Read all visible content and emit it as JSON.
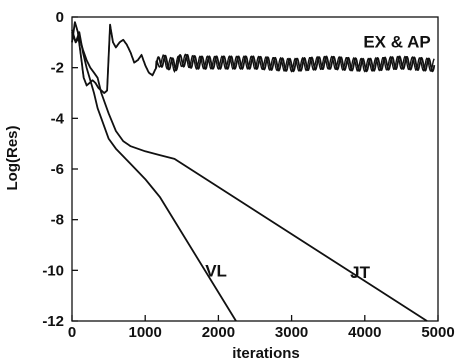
{
  "chart_data": {
    "type": "line",
    "title": "",
    "xlabel": "iterations",
    "ylabel": "Log(Res)",
    "xlim": [
      0,
      5000
    ],
    "ylim": [
      -12,
      0
    ],
    "xticks": [
      0,
      1000,
      2000,
      3000,
      4000,
      5000
    ],
    "xtick_labels": [
      "0",
      "1000",
      "2000",
      "3000",
      "4000",
      "5000"
    ],
    "yticks": [
      0,
      -2,
      -4,
      -6,
      -8,
      -10,
      -12
    ],
    "ytick_labels": [
      "0",
      "-2",
      "-4",
      "-6",
      "-8",
      "-10",
      "-12"
    ],
    "grid": false,
    "line_color": "#111111",
    "series": [
      {
        "name": "EX & AP",
        "x": [
          0,
          40,
          80,
          120,
          160,
          200,
          240,
          280,
          320,
          360,
          400,
          440,
          480,
          520,
          560,
          600,
          650,
          700,
          750,
          800,
          850,
          900,
          950,
          1000,
          1050,
          1100,
          1150,
          1200,
          1300,
          1400,
          1500,
          1700,
          2000,
          2500,
          3000,
          3500,
          4000,
          4500,
          4950
        ],
        "y": [
          -1.0,
          -0.2,
          -0.6,
          -1.5,
          -2.4,
          -2.7,
          -2.6,
          -2.5,
          -2.6,
          -2.8,
          -2.9,
          -3.0,
          -2.9,
          -0.3,
          -1.0,
          -1.2,
          -1.0,
          -0.9,
          -1.1,
          -1.4,
          -1.8,
          -1.7,
          -1.5,
          -1.9,
          -2.2,
          -2.3,
          -2.0,
          -1.7,
          -1.8,
          -1.9,
          -1.7,
          -1.8,
          -1.8,
          -1.8,
          -1.9,
          -1.8,
          -1.9,
          -1.8,
          -1.9
        ],
        "oscillation_amplitude": 0.25,
        "oscillation_period": 100,
        "oscillation_start": 1150
      },
      {
        "name": "VL",
        "x": [
          0,
          50,
          100,
          150,
          200,
          250,
          300,
          350,
          400,
          500,
          600,
          700,
          800,
          900,
          1000,
          1100,
          1200,
          2240
        ],
        "y": [
          -0.5,
          -1.0,
          -0.6,
          -1.4,
          -2.0,
          -2.5,
          -3.0,
          -3.6,
          -4.0,
          -4.8,
          -5.2,
          -5.5,
          -5.8,
          -6.1,
          -6.4,
          -6.75,
          -7.1,
          -12.0
        ]
      },
      {
        "name": "JT",
        "x": [
          0,
          50,
          100,
          150,
          200,
          250,
          300,
          350,
          400,
          500,
          600,
          700,
          800,
          1000,
          1200,
          1400,
          4850
        ],
        "y": [
          -0.6,
          -1.0,
          -0.8,
          -1.3,
          -1.7,
          -2.0,
          -2.2,
          -2.4,
          -3.0,
          -3.8,
          -4.5,
          -4.9,
          -5.1,
          -5.3,
          -5.45,
          -5.6,
          -12.0
        ]
      }
    ],
    "annotations": [
      {
        "text": "EX & AP",
        "x": 3980,
        "y": -1.2
      },
      {
        "text": "VL",
        "x": 1820,
        "y": -10.25
      },
      {
        "text": "JT",
        "x": 3800,
        "y": -10.3
      }
    ]
  }
}
